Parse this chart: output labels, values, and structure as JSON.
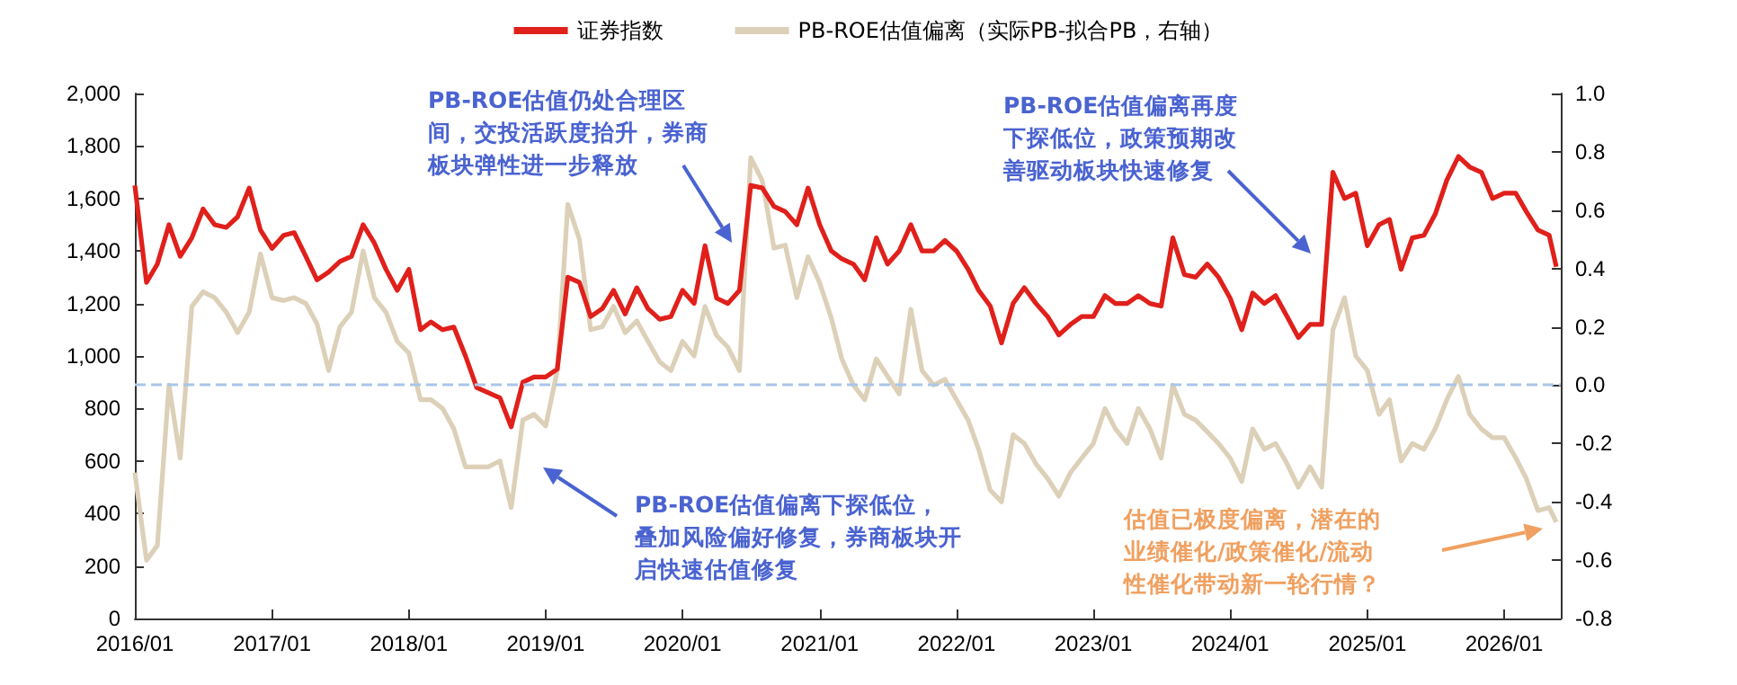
{
  "chart_data": {
    "type": "line",
    "x": [
      "2016-01",
      "2016-02",
      "2016-03",
      "2016-04",
      "2016-05",
      "2016-06",
      "2016-07",
      "2016-08",
      "2016-09",
      "2016-10",
      "2016-11",
      "2016-12",
      "2017-01",
      "2017-02",
      "2017-03",
      "2017-04",
      "2017-05",
      "2017-06",
      "2017-07",
      "2017-08",
      "2017-09",
      "2017-10",
      "2017-11",
      "2017-12",
      "2018-01",
      "2018-02",
      "2018-03",
      "2018-04",
      "2018-05",
      "2018-06",
      "2018-07",
      "2018-08",
      "2018-09",
      "2018-10",
      "2018-11",
      "2018-12",
      "2019-01",
      "2019-02",
      "2019-03",
      "2019-04",
      "2019-05",
      "2019-06",
      "2019-07",
      "2019-08",
      "2019-09",
      "2019-10",
      "2019-11",
      "2019-12",
      "2020-01",
      "2020-02",
      "2020-03",
      "2020-04",
      "2020-05",
      "2020-06",
      "2020-07",
      "2020-08",
      "2020-09",
      "2020-10",
      "2020-11",
      "2020-12",
      "2021-01",
      "2021-02",
      "2021-03",
      "2021-04",
      "2021-05",
      "2021-06",
      "2021-07",
      "2021-08",
      "2021-09",
      "2021-10",
      "2021-11",
      "2021-12",
      "2022-01",
      "2022-02",
      "2022-03",
      "2022-04",
      "2022-05",
      "2022-06",
      "2022-07",
      "2022-08",
      "2022-09",
      "2022-10",
      "2022-11",
      "2022-12",
      "2023-01",
      "2023-02",
      "2023-03",
      "2023-04",
      "2023-05",
      "2023-06",
      "2023-07",
      "2023-08",
      "2023-09",
      "2023-10",
      "2023-11",
      "2023-12",
      "2024-01",
      "2024-02",
      "2024-03",
      "2024-04",
      "2024-05",
      "2024-06",
      "2024-07",
      "2024-08",
      "2024-09",
      "2024-10",
      "2024-11",
      "2024-12",
      "2025-01",
      "2025-02",
      "2025-03",
      "2025-04",
      "2025-05",
      "2025-06",
      "2025-07",
      "2025-08",
      "2025-09",
      "2025-10",
      "2025-11",
      "2025-12",
      "2026-01",
      "2026-02",
      "2026-03",
      "2026-04",
      "2026-05",
      "2026-05-20"
    ],
    "series": [
      {
        "name": "证券指数",
        "color": "#e0201b",
        "values": [
          1650,
          1280,
          1350,
          1500,
          1380,
          1450,
          1560,
          1500,
          1490,
          1530,
          1640,
          1480,
          1410,
          1460,
          1470,
          1380,
          1290,
          1320,
          1360,
          1380,
          1500,
          1430,
          1330,
          1250,
          1330,
          1100,
          1130,
          1100,
          1110,
          1000,
          880,
          860,
          840,
          730,
          900,
          920,
          920,
          950,
          1300,
          1280,
          1150,
          1180,
          1250,
          1160,
          1260,
          1180,
          1140,
          1150,
          1250,
          1200,
          1420,
          1220,
          1200,
          1250,
          1650,
          1640,
          1570,
          1550,
          1500,
          1640,
          1500,
          1400,
          1370,
          1350,
          1290,
          1450,
          1350,
          1400,
          1500,
          1400,
          1400,
          1440,
          1400,
          1330,
          1250,
          1190,
          1050,
          1200,
          1260,
          1200,
          1150,
          1080,
          1120,
          1150,
          1150,
          1230,
          1200,
          1200,
          1230,
          1200,
          1190,
          1450,
          1310,
          1300,
          1350,
          1300,
          1220,
          1100,
          1240,
          1200,
          1230,
          1150,
          1070,
          1120,
          1120,
          1700,
          1600,
          1620,
          1420,
          1500,
          1520,
          1330,
          1450,
          1460,
          1540,
          1670,
          1760,
          1720,
          1700,
          1600,
          1620,
          1620,
          1550,
          1480,
          1460,
          1340
        ]
      },
      {
        "name": "PB-ROE估值偏离（实际PB-拟合PB，右轴）",
        "color": "#dcd0b8",
        "axis": "y2",
        "values": [
          -0.3,
          -0.6,
          -0.55,
          0.0,
          -0.25,
          0.27,
          0.32,
          0.3,
          0.25,
          0.18,
          0.25,
          0.45,
          0.3,
          0.29,
          0.3,
          0.28,
          0.21,
          0.05,
          0.2,
          0.25,
          0.46,
          0.3,
          0.25,
          0.15,
          0.11,
          -0.05,
          -0.05,
          -0.08,
          -0.15,
          -0.28,
          -0.28,
          -0.28,
          -0.26,
          -0.42,
          -0.12,
          -0.1,
          -0.14,
          0.05,
          0.62,
          0.5,
          0.19,
          0.2,
          0.27,
          0.18,
          0.22,
          0.15,
          0.08,
          0.05,
          0.15,
          0.1,
          0.27,
          0.17,
          0.13,
          0.05,
          0.78,
          0.7,
          0.47,
          0.48,
          0.3,
          0.44,
          0.35,
          0.23,
          0.09,
          0.0,
          -0.05,
          0.09,
          0.03,
          -0.03,
          0.26,
          0.05,
          0.0,
          0.02,
          -0.05,
          -0.12,
          -0.22,
          -0.36,
          -0.4,
          -0.17,
          -0.2,
          -0.27,
          -0.32,
          -0.38,
          -0.3,
          -0.25,
          -0.2,
          -0.08,
          -0.15,
          -0.2,
          -0.08,
          -0.15,
          -0.25,
          0.0,
          -0.1,
          -0.12,
          -0.16,
          -0.2,
          -0.25,
          -0.33,
          -0.15,
          -0.22,
          -0.2,
          -0.27,
          -0.35,
          -0.28,
          -0.35,
          0.19,
          0.3,
          0.1,
          0.05,
          -0.1,
          -0.05,
          -0.26,
          -0.2,
          -0.22,
          -0.15,
          -0.05,
          0.03,
          -0.1,
          -0.15,
          -0.18,
          -0.18,
          -0.25,
          -0.32,
          -0.43,
          -0.42,
          -0.47
        ]
      }
    ],
    "xlim": [
      "2016-01",
      "2026-06"
    ],
    "xticks": [
      {
        "value": "2016-01",
        "label": "2016/01"
      },
      {
        "value": "2017-01",
        "label": "2017/01"
      },
      {
        "value": "2018-01",
        "label": "2018/01"
      },
      {
        "value": "2019-01",
        "label": "2019/01"
      },
      {
        "value": "2020-01",
        "label": "2020/01"
      },
      {
        "value": "2021-01",
        "label": "2021/01"
      },
      {
        "value": "2022-01",
        "label": "2022/01"
      },
      {
        "value": "2023-01",
        "label": "2023/01"
      },
      {
        "value": "2024-01",
        "label": "2024/01"
      },
      {
        "value": "2025-01",
        "label": "2025/01"
      },
      {
        "value": "2026-01",
        "label": "2026/01"
      }
    ],
    "ylim": [
      0,
      2000
    ],
    "yticks": [
      0,
      200,
      400,
      600,
      800,
      {
        "value": 1000,
        "label": "1,000"
      },
      {
        "value": 1200,
        "label": "1,200"
      },
      {
        "value": 1400,
        "label": "1,400"
      },
      {
        "value": 1600,
        "label": "1,600"
      },
      {
        "value": 1800,
        "label": "1,800"
      },
      {
        "value": 2000,
        "label": "2,000"
      }
    ],
    "y2lim": [
      -0.8,
      1.0
    ],
    "y2ticks": [
      -0.8,
      -0.6,
      -0.4,
      -0.2,
      {
        "value": 0,
        "label": "0.0"
      },
      0.2,
      0.4,
      0.6,
      0.8,
      {
        "value": 1.0,
        "label": "1.0"
      }
    ],
    "ref_lines": [
      {
        "axis": "y2",
        "value": 0,
        "color": "#a9c6e8",
        "line_style": "dashed"
      }
    ],
    "annotations": [
      "PB-ROE估值仍处合理区间，交投活跃度抬升，券商板块弹性进一步释放",
      "PB-ROE估值偏离下探低位，叠加风险偏好修复，券商板块开启快速估值修复",
      "PB-ROE估值偏离再度下探低位，政策预期改善驱动板块快速修复",
      "估值已极度偏离，潜在的业绩催化/政策催化/流动性催化带动新一轮行情？"
    ],
    "legend": "top",
    "grid": false,
    "marker": "none",
    "line_style": "solid"
  }
}
